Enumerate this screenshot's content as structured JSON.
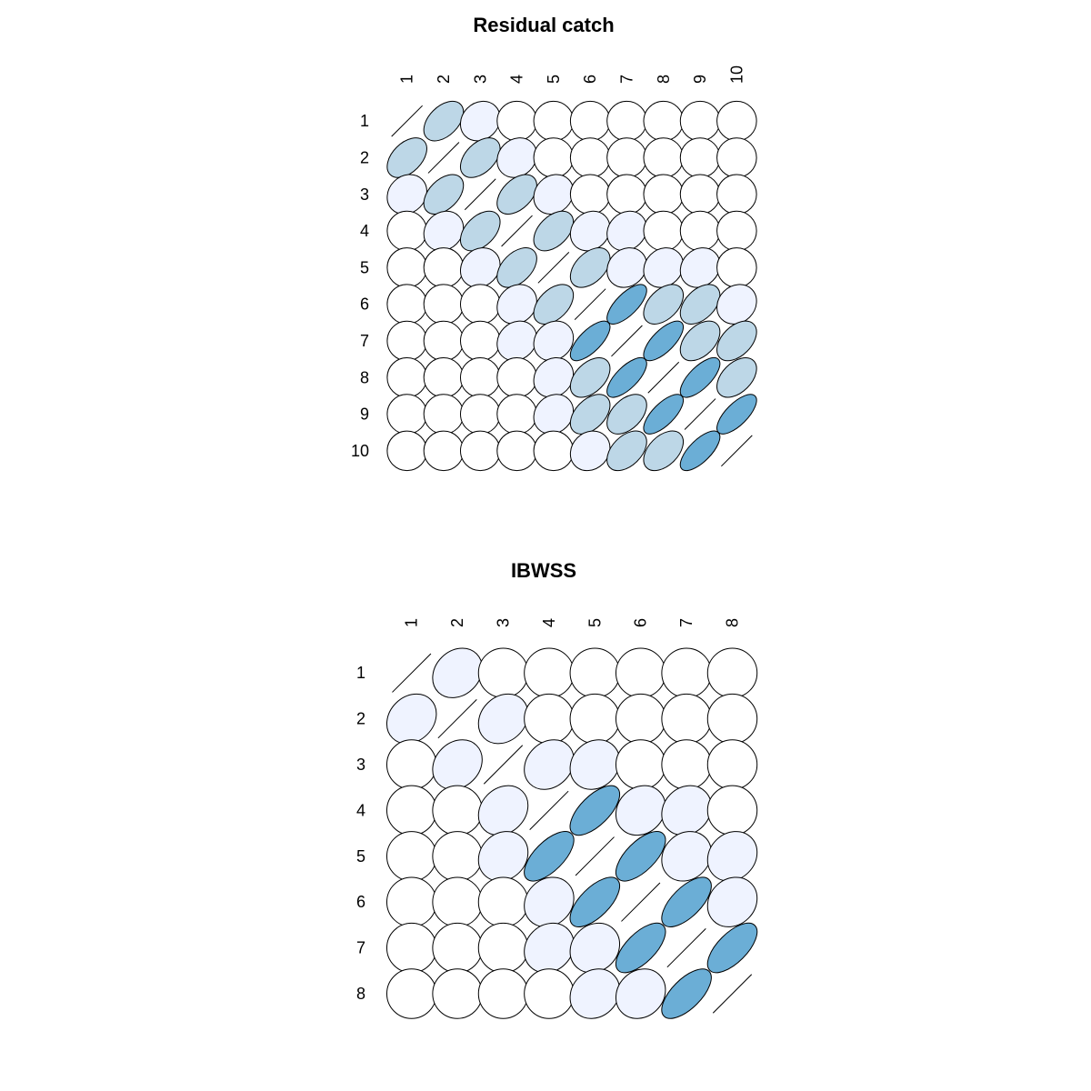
{
  "palette": {
    "levels": [
      "#ffffff",
      "#eff3ff",
      "#bdd7e7",
      "#6baed6"
    ],
    "stroke": "#000000"
  },
  "chart_data": [
    {
      "type": "heatmap",
      "subtype": "correlation-ellipse-matrix",
      "title": "Residual catch",
      "xlabel": "",
      "ylabel": "",
      "row_labels": [
        "1",
        "2",
        "3",
        "4",
        "5",
        "6",
        "7",
        "8",
        "9",
        "10"
      ],
      "col_labels": [
        "1",
        "2",
        "3",
        "4",
        "5",
        "6",
        "7",
        "8",
        "9",
        "10"
      ],
      "values": [
        [
          1.0,
          0.45,
          0.15,
          0.0,
          0.0,
          0.0,
          0.0,
          0.0,
          0.0,
          0.0
        ],
        [
          0.45,
          1.0,
          0.45,
          0.15,
          0.0,
          0.0,
          0.0,
          0.0,
          0.0,
          0.0
        ],
        [
          0.15,
          0.45,
          1.0,
          0.45,
          0.15,
          0.0,
          0.0,
          0.0,
          0.0,
          0.0
        ],
        [
          0.0,
          0.15,
          0.45,
          1.0,
          0.45,
          0.15,
          0.15,
          0.0,
          0.0,
          0.0
        ],
        [
          0.0,
          0.0,
          0.15,
          0.45,
          1.0,
          0.45,
          0.15,
          0.15,
          0.15,
          0.0
        ],
        [
          0.0,
          0.0,
          0.0,
          0.15,
          0.45,
          1.0,
          0.7,
          0.45,
          0.45,
          0.15
        ],
        [
          0.0,
          0.0,
          0.0,
          0.15,
          0.15,
          0.7,
          1.0,
          0.7,
          0.45,
          0.45
        ],
        [
          0.0,
          0.0,
          0.0,
          0.0,
          0.15,
          0.45,
          0.7,
          1.0,
          0.7,
          0.45
        ],
        [
          0.0,
          0.0,
          0.0,
          0.0,
          0.15,
          0.45,
          0.45,
          0.7,
          1.0,
          0.7
        ],
        [
          0.0,
          0.0,
          0.0,
          0.0,
          0.0,
          0.15,
          0.45,
          0.45,
          0.7,
          1.0
        ]
      ]
    },
    {
      "type": "heatmap",
      "subtype": "correlation-ellipse-matrix",
      "title": "IBWSS",
      "xlabel": "",
      "ylabel": "",
      "row_labels": [
        "1",
        "2",
        "3",
        "4",
        "5",
        "6",
        "7",
        "8"
      ],
      "col_labels": [
        "1",
        "2",
        "3",
        "4",
        "5",
        "6",
        "7",
        "8"
      ],
      "values": [
        [
          1.0,
          0.2,
          0.0,
          0.0,
          0.0,
          0.0,
          0.0,
          0.0
        ],
        [
          0.2,
          1.0,
          0.2,
          0.0,
          0.0,
          0.0,
          0.0,
          0.0
        ],
        [
          0.0,
          0.2,
          1.0,
          0.2,
          0.15,
          0.0,
          0.0,
          0.0
        ],
        [
          0.0,
          0.0,
          0.2,
          1.0,
          0.65,
          0.15,
          0.15,
          0.0
        ],
        [
          0.0,
          0.0,
          0.15,
          0.65,
          1.0,
          0.65,
          0.15,
          0.15
        ],
        [
          0.0,
          0.0,
          0.0,
          0.15,
          0.65,
          1.0,
          0.65,
          0.15
        ],
        [
          0.0,
          0.0,
          0.0,
          0.15,
          0.15,
          0.65,
          1.0,
          0.65
        ],
        [
          0.0,
          0.0,
          0.0,
          0.0,
          0.15,
          0.15,
          0.65,
          1.0
        ]
      ]
    }
  ]
}
